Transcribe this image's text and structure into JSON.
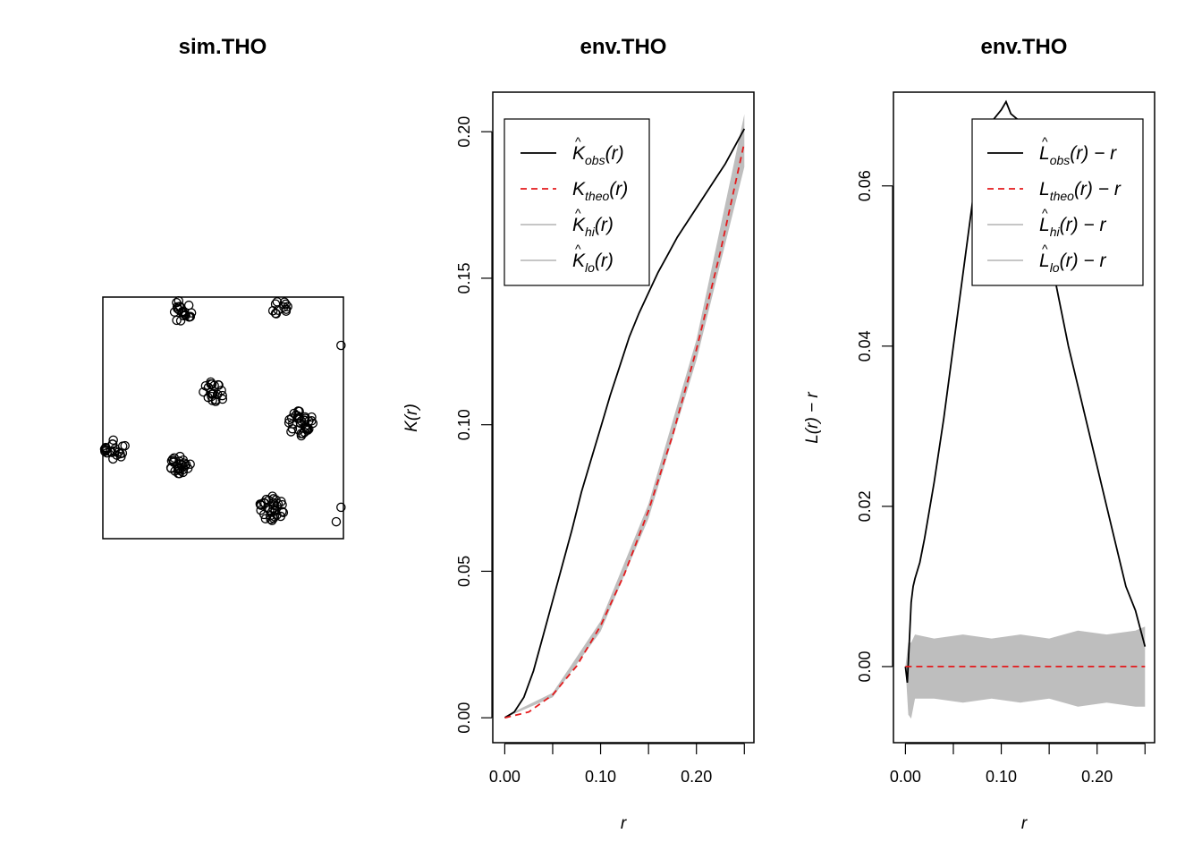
{
  "chart_data": [
    {
      "type": "scatter",
      "title": "sim.THO",
      "xlim": [
        0,
        1
      ],
      "ylim": [
        0,
        1
      ],
      "axes": false,
      "clusters": [
        {
          "cx": 0.32,
          "cy": 0.94,
          "n": 22,
          "spread": 0.05
        },
        {
          "cx": 0.74,
          "cy": 0.95,
          "n": 12,
          "spread": 0.04
        },
        {
          "cx": 0.46,
          "cy": 0.61,
          "n": 22,
          "spread": 0.05
        },
        {
          "cx": 0.82,
          "cy": 0.48,
          "n": 36,
          "spread": 0.055
        },
        {
          "cx": 0.05,
          "cy": 0.37,
          "n": 24,
          "spread": 0.045
        },
        {
          "cx": 0.32,
          "cy": 0.3,
          "n": 26,
          "spread": 0.045
        },
        {
          "cx": 0.7,
          "cy": 0.13,
          "n": 34,
          "spread": 0.055
        },
        {
          "cx": 0.99,
          "cy": 0.8,
          "n": 1,
          "spread": 0
        },
        {
          "cx": 0.99,
          "cy": 0.13,
          "n": 1,
          "spread": 0
        },
        {
          "cx": 0.97,
          "cy": 0.07,
          "n": 1,
          "spread": 0
        }
      ]
    },
    {
      "type": "line",
      "title": "env.THO",
      "xlabel": "r",
      "ylabel": "K(r)",
      "xlim": [
        -0.0125,
        0.26
      ],
      "ylim": [
        -0.0085,
        0.2135
      ],
      "xticks": [
        "0.00",
        "0.10",
        "0.20"
      ],
      "xtick_values": [
        0,
        0.1,
        0.2
      ],
      "xminor_ticks": [
        0.05,
        0.15,
        0.25
      ],
      "yticks": [
        "0.00",
        "0.05",
        "0.10",
        "0.15",
        "0.20"
      ],
      "ytick_values": [
        0,
        0.05,
        0.1,
        0.15,
        0.2
      ],
      "legend": {
        "position": "top-left",
        "entries": [
          {
            "base": "K",
            "hat": true,
            "sub": "obs",
            "arg": "(r)",
            "color": "#000000",
            "style": "solid"
          },
          {
            "base": "K",
            "hat": false,
            "sub": "theo",
            "arg": "(r)",
            "color": "#e41a1c",
            "style": "dashed"
          },
          {
            "base": "K",
            "hat": true,
            "sub": "hi",
            "arg": "(r)",
            "color": "#bebebe",
            "style": "solid"
          },
          {
            "base": "K",
            "hat": true,
            "sub": "lo",
            "arg": "(r)",
            "color": "#bebebe",
            "style": "solid"
          }
        ]
      },
      "series": [
        {
          "name": "obs",
          "color": "#000000",
          "x": [
            0,
            0.01,
            0.02,
            0.03,
            0.04,
            0.05,
            0.06,
            0.07,
            0.08,
            0.09,
            0.1,
            0.11,
            0.12,
            0.13,
            0.14,
            0.15,
            0.16,
            0.17,
            0.18,
            0.19,
            0.2,
            0.21,
            0.22,
            0.23,
            0.24,
            0.25
          ],
          "y": [
            0,
            0.002,
            0.007,
            0.016,
            0.028,
            0.04,
            0.052,
            0.064,
            0.077,
            0.088,
            0.099,
            0.11,
            0.12,
            0.13,
            0.138,
            0.145,
            0.152,
            0.158,
            0.164,
            0.169,
            0.174,
            0.179,
            0.184,
            0.189,
            0.195,
            0.201
          ]
        },
        {
          "name": "theo",
          "color": "#e41a1c",
          "formula": "pi*r^2",
          "x": [
            0,
            0.025,
            0.05,
            0.075,
            0.1,
            0.125,
            0.15,
            0.175,
            0.2,
            0.225,
            0.25
          ],
          "y": [
            0,
            0.00196,
            0.00785,
            0.01767,
            0.03142,
            0.04909,
            0.07069,
            0.09621,
            0.12566,
            0.15904,
            0.19635
          ]
        }
      ],
      "envelope": {
        "color": "#bebebe",
        "x": [
          0,
          0.05,
          0.1,
          0.15,
          0.2,
          0.25
        ],
        "hi": [
          0.0005,
          0.0085,
          0.033,
          0.073,
          0.129,
          0.206
        ],
        "lo": [
          0,
          0.007,
          0.0295,
          0.068,
          0.122,
          0.188
        ]
      }
    },
    {
      "type": "line",
      "title": "env.THO",
      "xlabel": "r",
      "ylabel": "L(r) − r",
      "xlim": [
        -0.0125,
        0.26
      ],
      "ylim": [
        -0.0095,
        0.0717
      ],
      "xticks": [
        "0.00",
        "0.10",
        "0.20"
      ],
      "xtick_values": [
        0,
        0.1,
        0.2
      ],
      "xminor_ticks": [
        0.05,
        0.15,
        0.25
      ],
      "yticks": [
        "0.00",
        "0.02",
        "0.04",
        "0.06"
      ],
      "ytick_values": [
        0,
        0.02,
        0.04,
        0.06
      ],
      "legend": {
        "position": "top-right",
        "entries": [
          {
            "base": "L",
            "hat": true,
            "sub": "obs",
            "arg": "(r) − r",
            "color": "#000000",
            "style": "solid"
          },
          {
            "base": "L",
            "hat": false,
            "sub": "theo",
            "arg": "(r) − r",
            "color": "#e41a1c",
            "style": "dashed"
          },
          {
            "base": "L",
            "hat": true,
            "sub": "hi",
            "arg": "(r) − r",
            "color": "#bebebe",
            "style": "solid"
          },
          {
            "base": "L",
            "hat": true,
            "sub": "lo",
            "arg": "(r) − r",
            "color": "#bebebe",
            "style": "solid"
          }
        ]
      },
      "series": [
        {
          "name": "obs",
          "color": "#000000",
          "x": [
            0,
            0.002,
            0.004,
            0.006,
            0.008,
            0.01,
            0.015,
            0.02,
            0.03,
            0.04,
            0.05,
            0.06,
            0.07,
            0.08,
            0.09,
            0.1,
            0.105,
            0.11,
            0.12,
            0.13,
            0.14,
            0.15,
            0.16,
            0.17,
            0.18,
            0.19,
            0.2,
            0.21,
            0.22,
            0.23,
            0.24,
            0.25
          ],
          "y": [
            0,
            -0.002,
            0.003,
            0.008,
            0.01,
            0.011,
            0.013,
            0.016,
            0.023,
            0.031,
            0.04,
            0.049,
            0.058,
            0.064,
            0.068,
            0.0695,
            0.0705,
            0.069,
            0.068,
            0.064,
            0.058,
            0.052,
            0.046,
            0.04,
            0.035,
            0.03,
            0.025,
            0.02,
            0.015,
            0.01,
            0.007,
            0.0025
          ]
        },
        {
          "name": "theo",
          "color": "#e41a1c",
          "x": [
            0,
            0.25
          ],
          "y": [
            0,
            0
          ]
        }
      ],
      "envelope": {
        "color": "#bebebe",
        "x": [
          0,
          0.003,
          0.006,
          0.01,
          0.03,
          0.06,
          0.09,
          0.12,
          0.15,
          0.18,
          0.21,
          0.24,
          0.25
        ],
        "hi": [
          0,
          0.003,
          0.003,
          0.004,
          0.0035,
          0.004,
          0.0035,
          0.004,
          0.0035,
          0.0045,
          0.004,
          0.0045,
          0.005
        ],
        "lo": [
          0,
          -0.006,
          -0.0065,
          -0.004,
          -0.004,
          -0.0045,
          -0.004,
          -0.0045,
          -0.004,
          -0.005,
          -0.0045,
          -0.005,
          -0.005
        ]
      }
    }
  ]
}
